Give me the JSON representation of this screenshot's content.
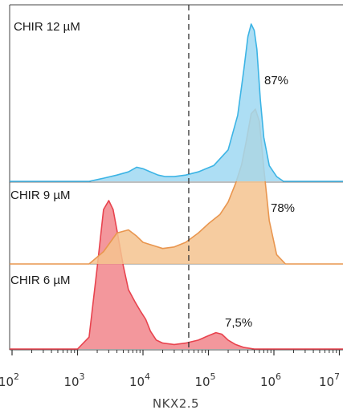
{
  "chart_data": {
    "type": "area",
    "subtype": "overlaid offset histograms (flow cytometry)",
    "xlabel": "NKX2.5",
    "x_scale": "log",
    "xlim": [
      100,
      10000000
    ],
    "x_ticks": [
      {
        "value": 100,
        "base": "10",
        "exp": "2"
      },
      {
        "value": 1000,
        "base": "10",
        "exp": "3"
      },
      {
        "value": 10000,
        "base": "10",
        "exp": "4"
      },
      {
        "value": 100000,
        "base": "10",
        "exp": "5"
      },
      {
        "value": 1000000,
        "base": "10",
        "exp": "6"
      },
      {
        "value": 10000000,
        "base": "10",
        "exp": "7"
      }
    ],
    "gate_threshold": 50000,
    "gate_style": "dashed",
    "grid": false,
    "series": [
      {
        "name": "CHIR 12 µM",
        "percent_label": "87%",
        "color": "#3cb4e5",
        "fill": "#9fd8f2",
        "x": [
          1500,
          2500,
          4000,
          6000,
          8000,
          10000,
          13000,
          17000,
          22000,
          30000,
          45000,
          70000,
          120000,
          200000,
          280000,
          350000,
          400000,
          450000,
          500000,
          550000,
          620000,
          700000,
          850000,
          1100000,
          1400000
        ],
        "y": [
          0.0,
          0.02,
          0.04,
          0.06,
          0.09,
          0.08,
          0.06,
          0.04,
          0.03,
          0.03,
          0.04,
          0.06,
          0.1,
          0.2,
          0.42,
          0.72,
          0.92,
          1.0,
          0.96,
          0.84,
          0.52,
          0.28,
          0.1,
          0.03,
          0.0
        ]
      },
      {
        "name": "CHIR 9 µM",
        "percent_label": "78%",
        "color": "#e9964f",
        "fill": "#f5c38f",
        "x": [
          1500,
          2500,
          4000,
          6000,
          8000,
          10000,
          14000,
          20000,
          30000,
          45000,
          70000,
          100000,
          150000,
          200000,
          260000,
          320000,
          380000,
          450000,
          520000,
          600000,
          700000,
          850000,
          1100000,
          1500000
        ],
        "y": [
          0.0,
          0.08,
          0.2,
          0.22,
          0.18,
          0.14,
          0.12,
          0.1,
          0.11,
          0.14,
          0.2,
          0.26,
          0.32,
          0.4,
          0.52,
          0.64,
          0.8,
          0.97,
          1.0,
          0.92,
          0.62,
          0.28,
          0.06,
          0.0
        ]
      },
      {
        "name": "CHIR 6 µM",
        "percent_label": "7,5%",
        "color": "#e8434e",
        "fill": "#f1858b",
        "x": [
          1000,
          1500,
          2000,
          2500,
          3000,
          3500,
          4000,
          5000,
          6000,
          7500,
          9000,
          11000,
          13000,
          16000,
          20000,
          30000,
          45000,
          70000,
          100000,
          130000,
          160000,
          200000,
          260000,
          350000,
          500000
        ],
        "y": [
          0.0,
          0.08,
          0.55,
          0.94,
          1.0,
          0.94,
          0.8,
          0.56,
          0.4,
          0.32,
          0.26,
          0.2,
          0.12,
          0.06,
          0.04,
          0.03,
          0.04,
          0.06,
          0.09,
          0.11,
          0.1,
          0.06,
          0.03,
          0.01,
          0.0
        ]
      }
    ]
  }
}
